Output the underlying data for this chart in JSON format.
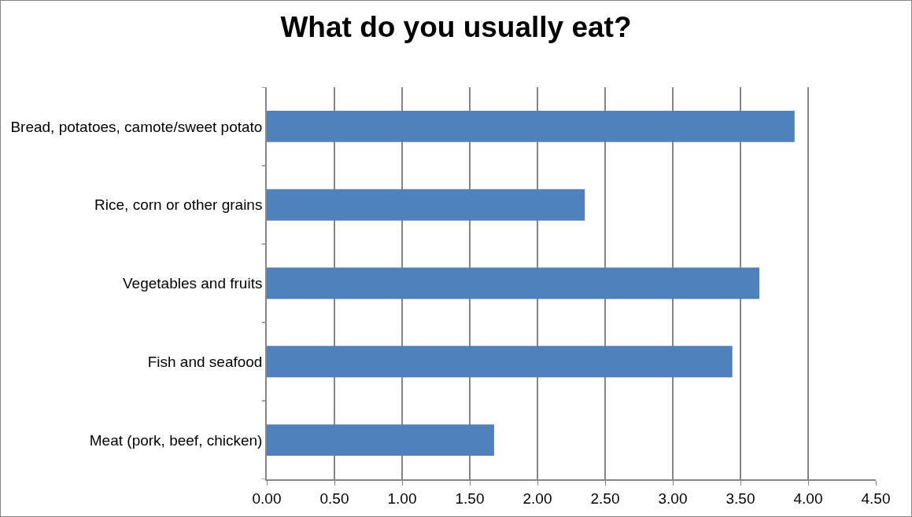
{
  "chart_data": {
    "type": "bar",
    "orientation": "horizontal",
    "title": "What do you usually eat?",
    "categories": [
      "Bread, potatoes, camote/sweet potato",
      "Rice, corn or other grains",
      "Vegetables and fruits",
      "Fish and seafood",
      "Meat (pork, beef, chicken)"
    ],
    "values": [
      3.9,
      2.35,
      3.64,
      3.44,
      1.68
    ],
    "color": "#4f81bd",
    "xlim": [
      0,
      4.5
    ],
    "xticks": [
      {
        "value": 0,
        "label": "0.00"
      },
      {
        "value": 0.5,
        "label": "0.50"
      },
      {
        "value": 1,
        "label": "1.00"
      },
      {
        "value": 1.5,
        "label": "1.50"
      },
      {
        "value": 2,
        "label": "2.00"
      },
      {
        "value": 2.5,
        "label": "2.50"
      },
      {
        "value": 3,
        "label": "3.00"
      },
      {
        "value": 3.5,
        "label": "3.50"
      },
      {
        "value": 4,
        "label": "4.00"
      },
      {
        "value": 4.5,
        "label": "4.50"
      }
    ],
    "grid": "x"
  }
}
